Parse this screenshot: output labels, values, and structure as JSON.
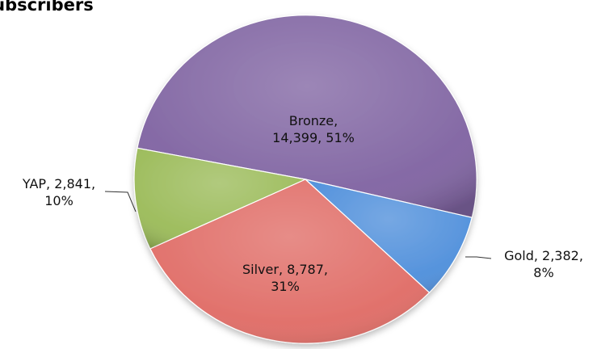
{
  "chart_data": {
    "type": "pie",
    "title": "Subscribers",
    "categories": [
      "Bronze",
      "Gold",
      "Silver",
      "YAP"
    ],
    "values": [
      14399,
      2382,
      8787,
      2841
    ],
    "percents": [
      51,
      8,
      31,
      10
    ],
    "colors": {
      "Bronze": "#8064a2",
      "Gold": "#4f8fdb",
      "Silver": "#e06c66",
      "YAP": "#9bbb59"
    },
    "label_lines": {
      "Bronze": [
        "Bronze,",
        "14,399, 51%"
      ],
      "Gold": [
        "Gold, 2,382,",
        "8%"
      ],
      "Silver": [
        "Silver, 8,787,",
        "31%"
      ],
      "YAP": [
        "YAP, 2,841,",
        "10%"
      ]
    },
    "legend": "none",
    "style": "3d-perspective-pie"
  }
}
